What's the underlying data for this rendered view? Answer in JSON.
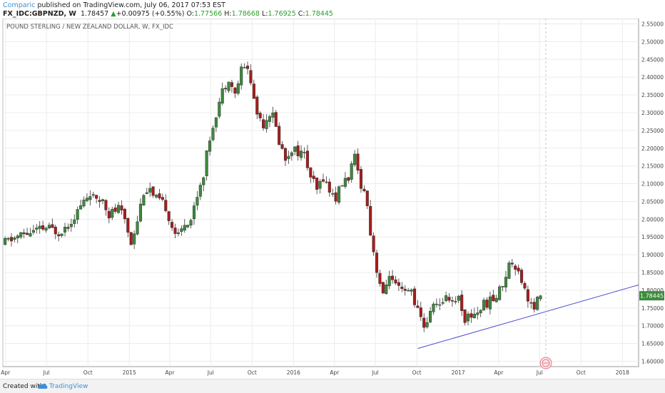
{
  "header": {
    "author": "Comparic",
    "published_text": "published on TradingView.com, July 06, 2017 07:53 EST",
    "symbol": "FX_IDC:GBPNZD, W",
    "last": "1.78457",
    "change_arrow": "▲",
    "change": "+0.00975 (+0.55%)",
    "o_label": "O:",
    "o_value": "1.77566",
    "h_label": "H:",
    "h_value": "1.78668",
    "l_label": "L:",
    "l_value": "1.76925",
    "c_label": "C:",
    "c_value": "1.78445"
  },
  "chart_data": {
    "type": "candlestick",
    "title": "POUND STERLING / NEW ZEALAND DOLLAR, W, FX_IDC",
    "y_ticks": [
      "1.60000",
      "1.65000",
      "1.70000",
      "1.75000",
      "1.80000",
      "1.85000",
      "1.90000",
      "1.95000",
      "2.00000",
      "2.05000",
      "2.10000",
      "2.15000",
      "2.20000",
      "2.25000",
      "2.30000",
      "2.35000",
      "2.40000",
      "2.45000",
      "2.50000",
      "2.55000"
    ],
    "ylim": [
      1.585,
      2.565
    ],
    "x_ticks": [
      "Apr",
      "Jul",
      "Oct",
      "2015",
      "Apr",
      "Jul",
      "Oct",
      "2016",
      "Apr",
      "Jul",
      "Oct",
      "2017",
      "Apr",
      "Jul",
      "Oct",
      "2018"
    ],
    "x_tick_dates": [
      "2014-04-01",
      "2014-07-01",
      "2014-10-01",
      "2015-01-01",
      "2015-04-01",
      "2015-07-01",
      "2015-10-01",
      "2016-01-01",
      "2016-04-01",
      "2016-07-01",
      "2016-10-01",
      "2017-01-01",
      "2017-04-01",
      "2017-07-01",
      "2017-10-01",
      "2018-01-01"
    ],
    "xlim": [
      "2014-03-26",
      "2018-02-06"
    ],
    "last_price_label": "1.78445",
    "up_color": "#3d8a3d",
    "down_color": "#a81c1c",
    "trendline": {
      "color": "#4b4bd4",
      "from": {
        "date": "2016-10-03",
        "price": 1.636
      },
      "to": {
        "date": "2018-02-06",
        "price": 1.815
      }
    },
    "close_path": [
      [
        "2014-03-31",
        1.935
      ],
      [
        "2014-05-05",
        1.955
      ],
      [
        "2014-06-02",
        1.965
      ],
      [
        "2014-06-30",
        1.975
      ],
      [
        "2014-07-28",
        1.965
      ],
      [
        "2014-08-18",
        1.985
      ],
      [
        "2014-09-01",
        2.01
      ],
      [
        "2014-09-22",
        2.05
      ],
      [
        "2014-10-06",
        2.075
      ],
      [
        "2014-10-20",
        2.045
      ],
      [
        "2014-11-03",
        2.06
      ],
      [
        "2014-11-17",
        2.015
      ],
      [
        "2014-11-24",
        2.02
      ],
      [
        "2014-12-08",
        2.03
      ],
      [
        "2014-12-22",
        2.0
      ],
      [
        "2015-01-05",
        1.935
      ],
      [
        "2015-01-19",
        2.0
      ],
      [
        "2015-02-02",
        2.08
      ],
      [
        "2015-02-16",
        2.085
      ],
      [
        "2015-02-23",
        2.06
      ],
      [
        "2015-03-09",
        2.05
      ],
      [
        "2015-03-23",
        2.035
      ],
      [
        "2015-04-06",
        1.98
      ],
      [
        "2015-04-20",
        1.95
      ],
      [
        "2015-05-04",
        1.99
      ],
      [
        "2015-05-18",
        2.0
      ],
      [
        "2015-06-01",
        2.07
      ],
      [
        "2015-06-15",
        2.13
      ],
      [
        "2015-06-29",
        2.23
      ],
      [
        "2015-07-13",
        2.3
      ],
      [
        "2015-07-27",
        2.36
      ],
      [
        "2015-08-10",
        2.4
      ],
      [
        "2015-08-24",
        2.35
      ],
      [
        "2015-09-07",
        2.42
      ],
      [
        "2015-09-21",
        2.43
      ],
      [
        "2015-09-28",
        2.38
      ],
      [
        "2015-10-12",
        2.3
      ],
      [
        "2015-10-26",
        2.27
      ],
      [
        "2015-11-09",
        2.3
      ],
      [
        "2015-11-16",
        2.29
      ],
      [
        "2015-11-30",
        2.22
      ],
      [
        "2015-12-14",
        2.17
      ],
      [
        "2015-12-28",
        2.2
      ],
      [
        "2016-01-11",
        2.19
      ],
      [
        "2016-01-25",
        2.18
      ],
      [
        "2016-02-08",
        2.12
      ],
      [
        "2016-02-22",
        2.08
      ],
      [
        "2016-03-07",
        2.12
      ],
      [
        "2016-03-21",
        2.08
      ],
      [
        "2016-04-04",
        2.06
      ],
      [
        "2016-04-18",
        2.1
      ],
      [
        "2016-05-02",
        2.12
      ],
      [
        "2016-05-16",
        2.17
      ],
      [
        "2016-05-30",
        2.1
      ],
      [
        "2016-06-13",
        2.05
      ],
      [
        "2016-06-20",
        1.96
      ],
      [
        "2016-07-04",
        1.86
      ],
      [
        "2016-07-18",
        1.78
      ],
      [
        "2016-08-01",
        1.85
      ],
      [
        "2016-08-08",
        1.82
      ],
      [
        "2016-08-22",
        1.8
      ],
      [
        "2016-09-05",
        1.79
      ],
      [
        "2016-09-19",
        1.8
      ],
      [
        "2016-10-03",
        1.74
      ],
      [
        "2016-10-17",
        1.7
      ],
      [
        "2016-10-31",
        1.73
      ],
      [
        "2016-11-07",
        1.77
      ],
      [
        "2016-11-21",
        1.75
      ],
      [
        "2016-12-05",
        1.79
      ],
      [
        "2016-12-19",
        1.77
      ],
      [
        "2017-01-02",
        1.78
      ],
      [
        "2017-01-16",
        1.72
      ],
      [
        "2017-01-30",
        1.73
      ],
      [
        "2017-02-13",
        1.74
      ],
      [
        "2017-02-27",
        1.76
      ],
      [
        "2017-03-13",
        1.77
      ],
      [
        "2017-03-27",
        1.78
      ],
      [
        "2017-04-10",
        1.82
      ],
      [
        "2017-04-24",
        1.87
      ],
      [
        "2017-05-01",
        1.88
      ],
      [
        "2017-05-15",
        1.86
      ],
      [
        "2017-05-29",
        1.8
      ],
      [
        "2017-06-12",
        1.76
      ],
      [
        "2017-06-19",
        1.74
      ],
      [
        "2017-06-26",
        1.77
      ],
      [
        "2017-07-03",
        1.784
      ]
    ]
  },
  "footer": {
    "created_with": "Created with",
    "brand": "TradingView"
  }
}
